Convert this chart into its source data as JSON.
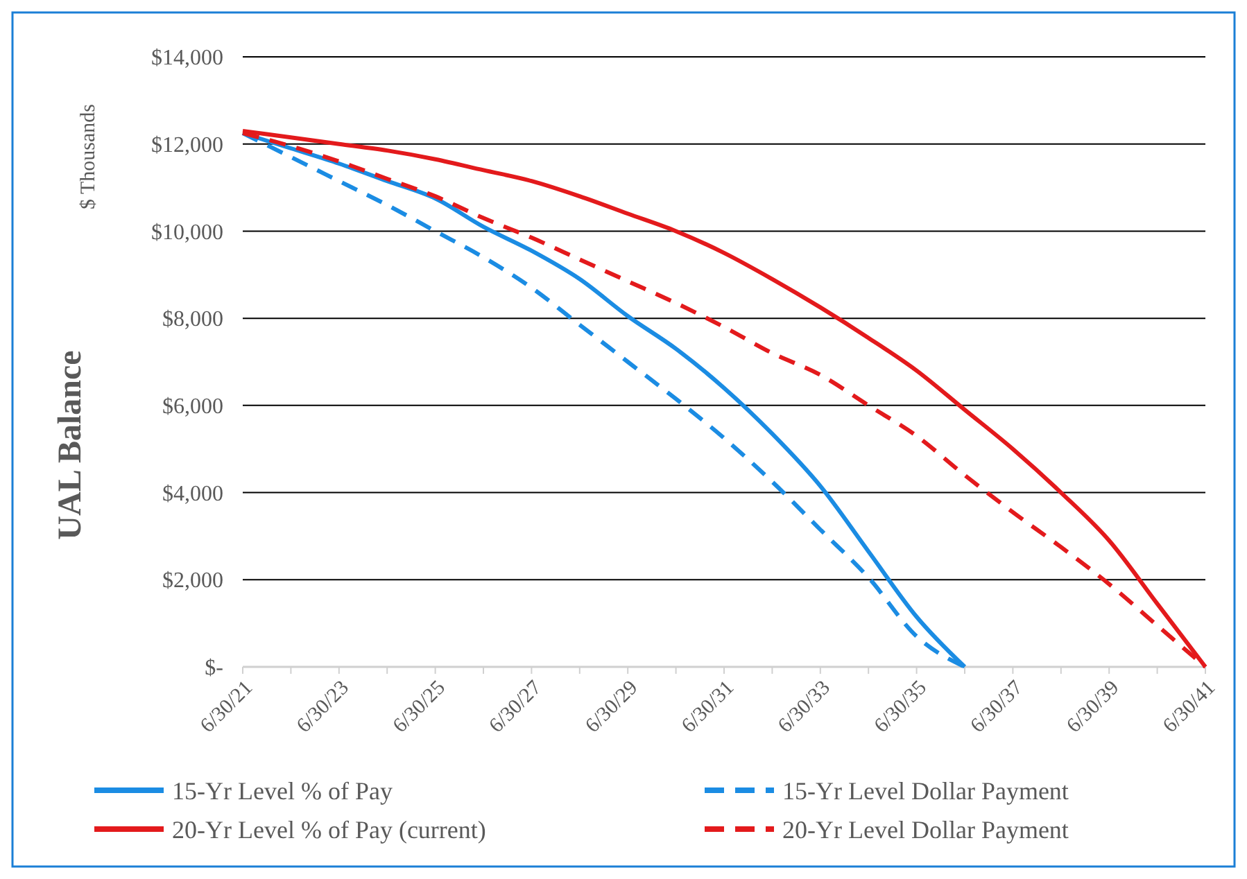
{
  "chart_data": {
    "type": "line",
    "ylabel": "UAL Balance",
    "annotations": [
      "$ Thousands"
    ],
    "categories": [
      "6/30/21",
      null,
      "6/30/23",
      null,
      "6/30/25",
      null,
      "6/30/27",
      null,
      "6/30/29",
      null,
      "6/30/31",
      null,
      "6/30/33",
      null,
      "6/30/35",
      null,
      "6/30/37",
      null,
      "6/30/39",
      null,
      "6/30/41"
    ],
    "series": [
      {
        "name": "15-Yr Level % of Pay",
        "color": "#1b8ce3",
        "line_style": "solid",
        "values": [
          12250,
          11900,
          11550,
          11150,
          10750,
          10100,
          9550,
          8900,
          8050,
          7300,
          6400,
          5350,
          4150,
          2650,
          1150,
          0,
          null,
          null,
          null,
          null,
          null
        ]
      },
      {
        "name": "15-Yr Level Dollar Payment",
        "color": "#1b8ce3",
        "line_style": "dashed",
        "values": [
          12250,
          11700,
          11150,
          10600,
          10000,
          9400,
          8700,
          7850,
          7000,
          6150,
          5250,
          4250,
          3150,
          2050,
          700,
          0,
          null,
          null,
          null,
          null,
          null
        ]
      },
      {
        "name": "20-Yr Level % of Pay (current)",
        "color": "#e31a1c",
        "line_style": "solid",
        "values": [
          12300,
          12150,
          12000,
          11850,
          11650,
          11400,
          11150,
          10800,
          10400,
          10000,
          9500,
          8900,
          8250,
          7550,
          6800,
          5900,
          5000,
          4000,
          2900,
          1450,
          0
        ]
      },
      {
        "name": "20-Yr Level Dollar Payment",
        "color": "#e31a1c",
        "line_style": "dashed",
        "values": [
          12250,
          11950,
          11600,
          11200,
          10800,
          10300,
          9850,
          9350,
          8850,
          8350,
          7800,
          7200,
          6700,
          6000,
          5300,
          4400,
          3550,
          2750,
          1900,
          950,
          0
        ]
      }
    ],
    "ylim": [
      0,
      14000
    ],
    "yticks": [
      {
        "value": 0,
        "label": "$-"
      },
      {
        "value": 2000,
        "label": "$2,000"
      },
      {
        "value": 4000,
        "label": "$4,000"
      },
      {
        "value": 6000,
        "label": "$6,000"
      },
      {
        "value": 8000,
        "label": "$8,000"
      },
      {
        "value": 10000,
        "label": "$10,000"
      },
      {
        "value": 12000,
        "label": "$12,000"
      },
      {
        "value": 14000,
        "label": "$14,000"
      }
    ],
    "grid": "y",
    "legend": "bottom"
  }
}
